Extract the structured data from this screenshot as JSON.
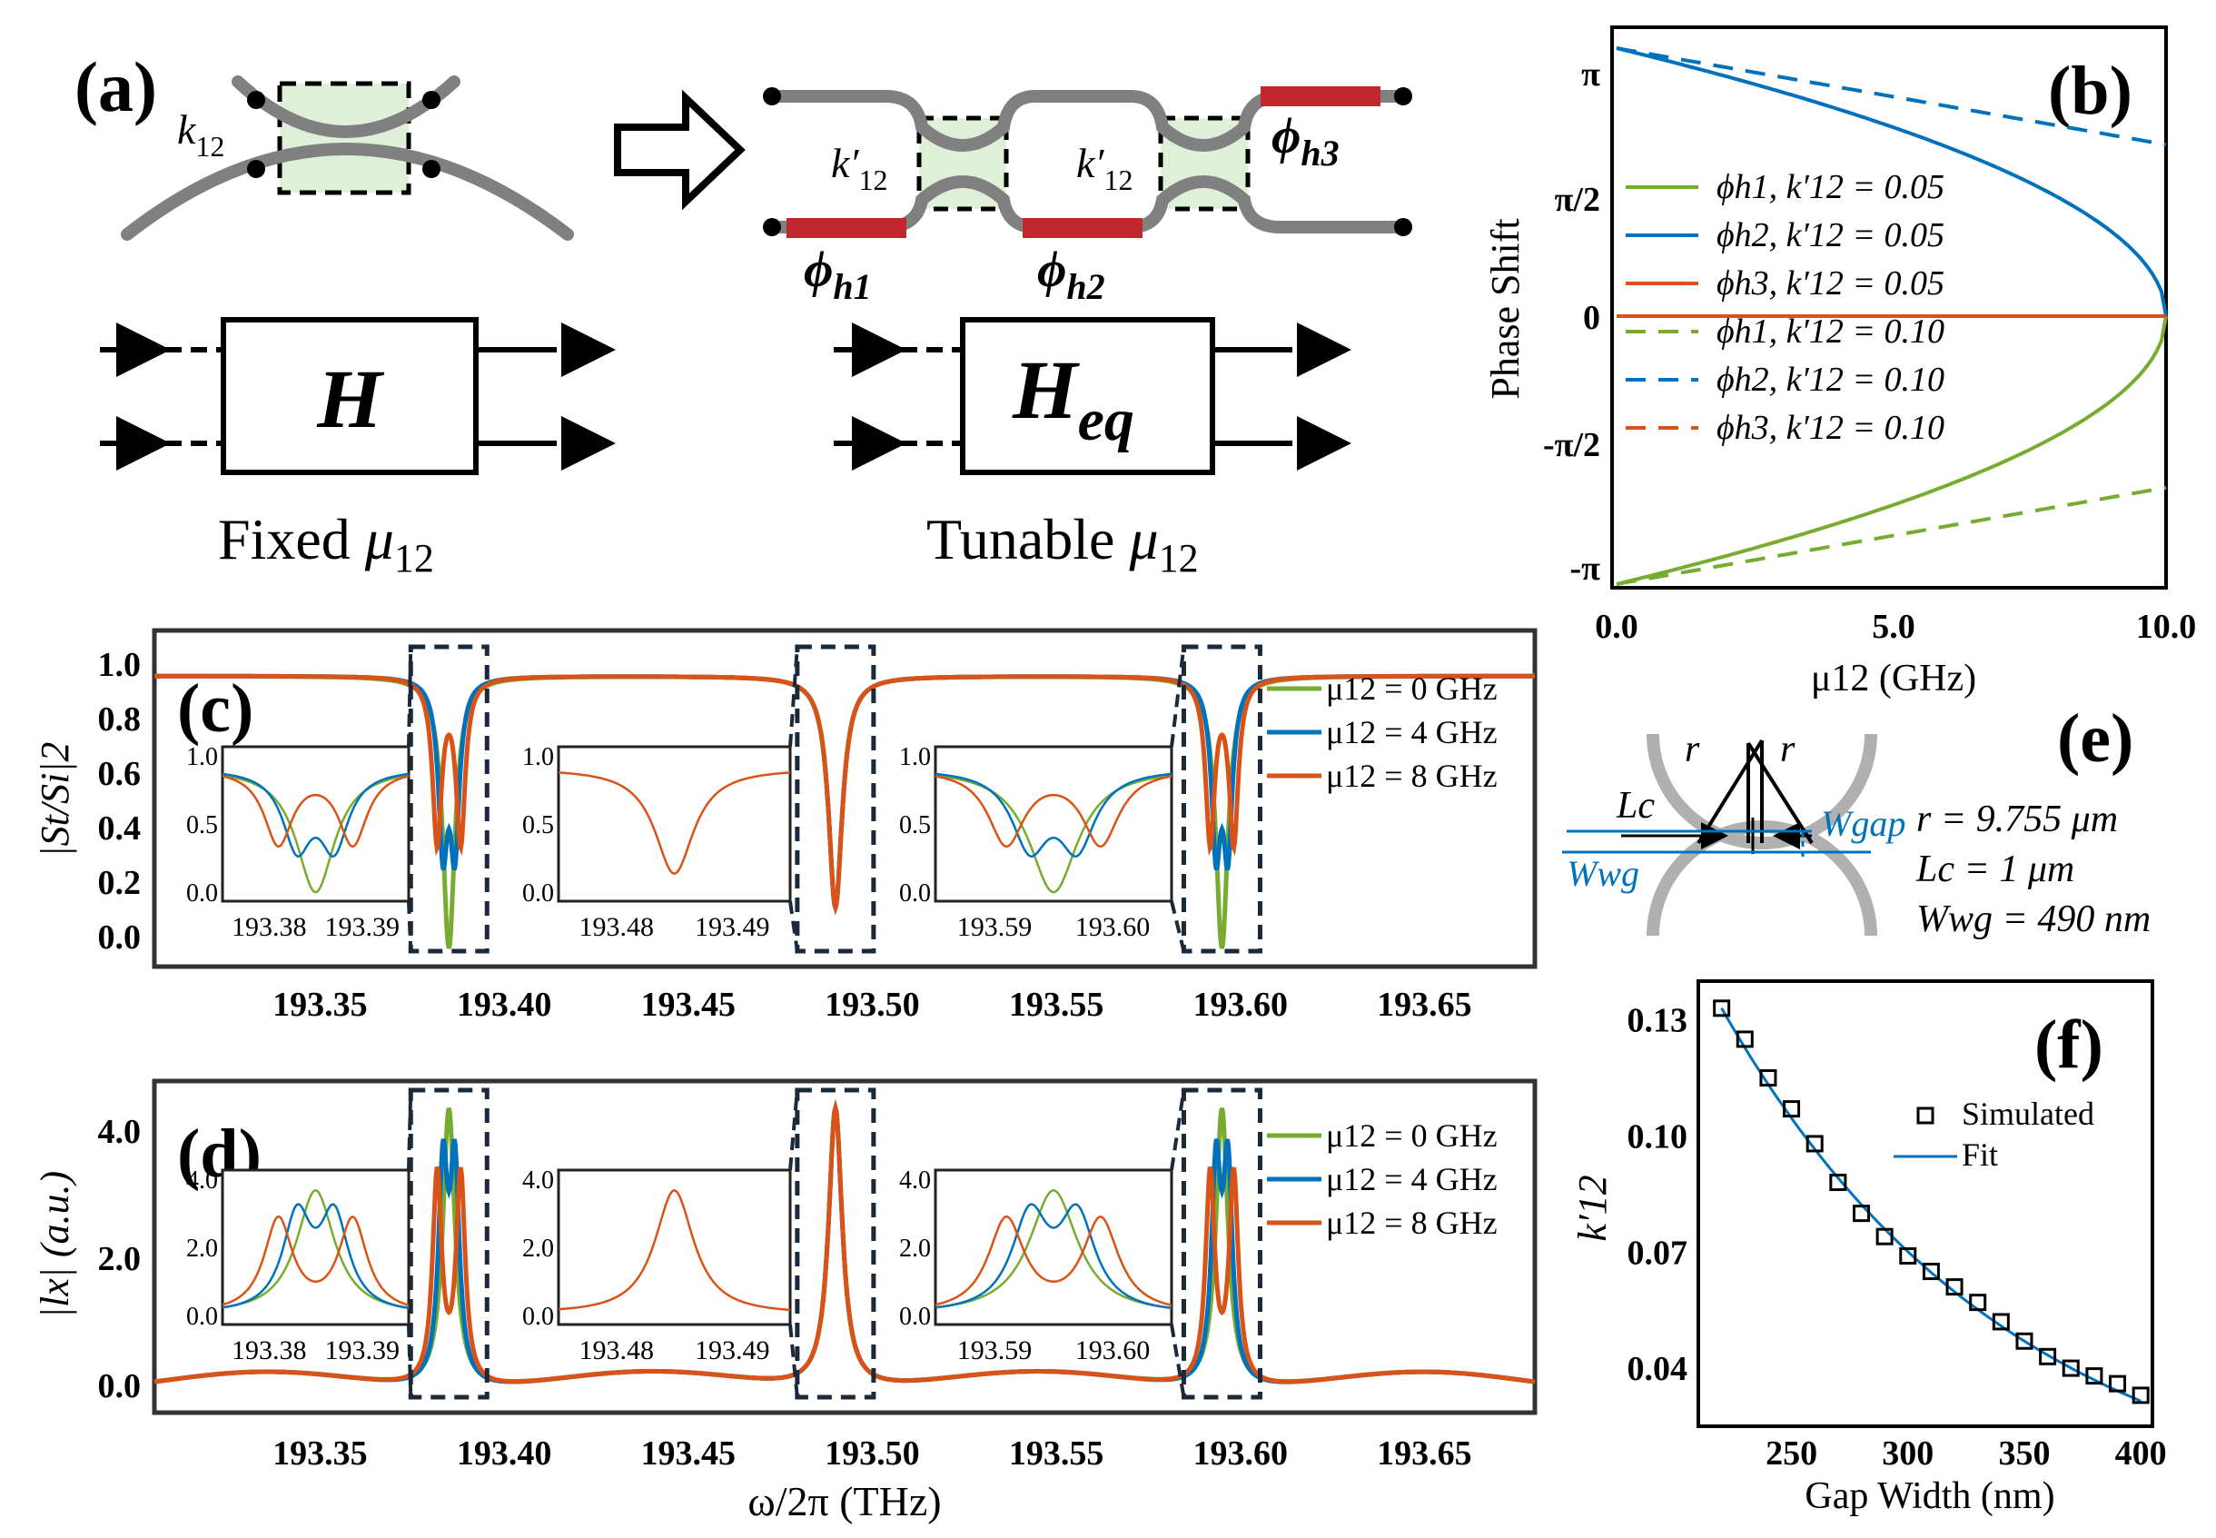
{
  "panels": {
    "a": {
      "label": "(a)",
      "k12": "k",
      "k12_sub": "12",
      "kprime": "k′",
      "kprime_sub": "12",
      "phi": "ϕ",
      "phi_h1_sub": "h1",
      "phi_h2_sub": "h2",
      "phi_h3_sub": "h3",
      "box_left": "H",
      "box_right": "H",
      "box_right_sub": "eq",
      "caption_left": "Fixed ",
      "caption_right": "Tunable ",
      "mu": "μ",
      "mu_sub": "12"
    },
    "b": {
      "label": "(b)",
      "ylabel": "Phase Shift",
      "xlabel": "μ12 (GHz)",
      "yticks": [
        "π",
        "π/2",
        "0",
        "-π/2",
        "-π"
      ],
      "xticks": [
        "0.0",
        "5.0",
        "10.0"
      ],
      "legend": [
        {
          "phi": "ϕh1,",
          "k": "k′12 = 0.05"
        },
        {
          "phi": "ϕh2,",
          "k": "k′12 = 0.05"
        },
        {
          "phi": "ϕh3,",
          "k": "k′12 = 0.05"
        },
        {
          "phi": "ϕh1,",
          "k": "k′12 = 0.10"
        },
        {
          "phi": "ϕh2,",
          "k": "k′12 = 0.10"
        },
        {
          "phi": "ϕh3,",
          "k": "k′12 = 0.10"
        }
      ]
    },
    "c": {
      "label": "(c)",
      "ylabel": "|St/Si|2",
      "yticks": [
        "1.0",
        "0.8",
        "0.6",
        "0.4",
        "0.2",
        "0.0"
      ],
      "xticks": [
        "193.35",
        "193.40",
        "193.45",
        "193.50",
        "193.55",
        "193.60",
        "193.65"
      ],
      "legend": [
        "μ12 = 0 GHz",
        "μ12 = 4 GHz",
        "μ12 = 8 GHz"
      ],
      "insets": [
        {
          "yticks": [
            "1.0",
            "0.5",
            "0.0"
          ],
          "xticks": [
            "193.38",
            "193.39"
          ]
        },
        {
          "yticks": [
            "1.0",
            "0.5",
            "0.0"
          ],
          "xticks": [
            "193.48",
            "193.49"
          ]
        },
        {
          "yticks": [
            "1.0",
            "0.5",
            "0.0"
          ],
          "xticks": [
            "193.59",
            "193.60"
          ]
        }
      ]
    },
    "d": {
      "label": "(d)",
      "ylabel": "|lx| (a.u.)",
      "xlabel": "ω/2π (THz)",
      "yticks": [
        "4.0",
        "2.0",
        "0.0"
      ],
      "xticks": [
        "193.35",
        "193.40",
        "193.45",
        "193.50",
        "193.55",
        "193.60",
        "193.65"
      ],
      "legend": [
        "μ12 = 0 GHz",
        "μ12 = 4 GHz",
        "μ12 = 8 GHz"
      ],
      "insets": [
        {
          "yticks": [
            "4.0",
            "2.0",
            "0.0"
          ],
          "xticks": [
            "193.38",
            "193.39"
          ]
        },
        {
          "yticks": [
            "4.0",
            "2.0",
            "0.0"
          ],
          "xticks": [
            "193.48",
            "193.49"
          ]
        },
        {
          "yticks": [
            "4.0",
            "2.0",
            "0.0"
          ],
          "xticks": [
            "193.59",
            "193.60"
          ]
        }
      ]
    },
    "e": {
      "label": "(e)",
      "r": "r",
      "Lc": "Lc",
      "Wgap": "Wgap",
      "Wwg": "Wwg",
      "params": [
        "r = 9.755 μm",
        "Lc = 1 μm",
        "Wwg = 490 nm"
      ]
    },
    "f": {
      "label": "(f)",
      "ylabel": "k′12",
      "xlabel": "Gap Width (nm)",
      "yticks": [
        "0.13",
        "0.10",
        "0.07",
        "0.04"
      ],
      "xticks": [
        "250",
        "300",
        "350",
        "400"
      ],
      "legend": [
        "Simulated",
        "Fit"
      ]
    }
  },
  "colors": {
    "green": "#77ac30",
    "blue": "#0072bd",
    "orange": "#d95319",
    "red": "#c0282d",
    "gray": "#808080",
    "lightgreen": "#dff0d8",
    "dash": "#1a2a3a"
  },
  "chart_data": [
    {
      "type": "line",
      "panel": "b",
      "xlabel": "μ12 (GHz)",
      "ylabel": "Phase Shift",
      "xlim": [
        0,
        10
      ],
      "ylim": [
        "-π",
        "π"
      ],
      "x": [
        0,
        2,
        4,
        6,
        8,
        10
      ],
      "series": [
        {
          "name": "ϕh1, k′12 = 0.05",
          "values": [
            -3.14,
            -2.54,
            -2.22,
            -1.84,
            -1.31,
            0
          ]
        },
        {
          "name": "ϕh2, k′12 = 0.05",
          "values": [
            3.14,
            2.54,
            2.22,
            1.84,
            1.31,
            0
          ]
        },
        {
          "name": "ϕh3, k′12 = 0.05",
          "values": [
            0,
            0,
            0,
            0,
            0,
            0
          ]
        },
        {
          "name": "ϕh1, k′12 = 0.10",
          "values": [
            -3.14,
            -2.94,
            -2.73,
            -2.51,
            -2.27,
            -2.02
          ]
        },
        {
          "name": "ϕh2, k′12 = 0.10",
          "values": [
            3.14,
            2.94,
            2.73,
            2.51,
            2.27,
            2.02
          ]
        },
        {
          "name": "ϕh3, k′12 = 0.10",
          "values": [
            0,
            0,
            0,
            0,
            0,
            0
          ]
        }
      ]
    },
    {
      "type": "line",
      "panel": "c",
      "xlabel": "",
      "ylabel": "|St/Si|2",
      "xlim": [
        193.305,
        193.68
      ],
      "ylim": [
        -0.05,
        1.1
      ],
      "resonances": [
        {
          "center": 193.385,
          "min": 0.0,
          "split_GHz": [
            0,
            4,
            8
          ]
        },
        {
          "center": 193.49,
          "min": 0.15
        },
        {
          "center": 193.595,
          "min": 0.0,
          "split_GHz": [
            0,
            4,
            8
          ]
        }
      ],
      "series": [
        {
          "name": "μ12 = 0 GHz"
        },
        {
          "name": "μ12 = 4 GHz"
        },
        {
          "name": "μ12 = 8 GHz"
        }
      ]
    },
    {
      "type": "line",
      "panel": "d",
      "xlabel": "ω/2π (THz)",
      "ylabel": "|lx| (a.u.)",
      "xlim": [
        193.305,
        193.68
      ],
      "ylim": [
        -0.3,
        4.7
      ],
      "resonances": [
        {
          "center": 193.385,
          "peak": 4.4
        },
        {
          "center": 193.49,
          "peak": 4.4
        },
        {
          "center": 193.595,
          "peak": 4.4
        }
      ],
      "series": [
        {
          "name": "μ12 = 0 GHz"
        },
        {
          "name": "μ12 = 4 GHz"
        },
        {
          "name": "μ12 = 8 GHz"
        }
      ]
    },
    {
      "type": "scatter",
      "panel": "f",
      "xlabel": "Gap Width (nm)",
      "ylabel": "k′12",
      "xlim": [
        210,
        405
      ],
      "ylim": [
        0.025,
        0.14
      ],
      "x": [
        220,
        230,
        240,
        250,
        260,
        270,
        280,
        290,
        300,
        310,
        320,
        330,
        340,
        350,
        360,
        370,
        380,
        390,
        400
      ],
      "series": [
        {
          "name": "Simulated",
          "values": [
            0.133,
            0.125,
            0.115,
            0.107,
            0.098,
            0.088,
            0.08,
            0.074,
            0.069,
            0.065,
            0.061,
            0.057,
            0.052,
            0.047,
            0.043,
            0.04,
            0.038,
            0.036,
            0.033
          ]
        },
        {
          "name": "Fit",
          "values": [
            0.133,
            0.123,
            0.114,
            0.105,
            0.097,
            0.089,
            0.082,
            0.076,
            0.07,
            0.065,
            0.06,
            0.056,
            0.052,
            0.048,
            0.045,
            0.042,
            0.039,
            0.036,
            0.034
          ]
        }
      ]
    }
  ]
}
